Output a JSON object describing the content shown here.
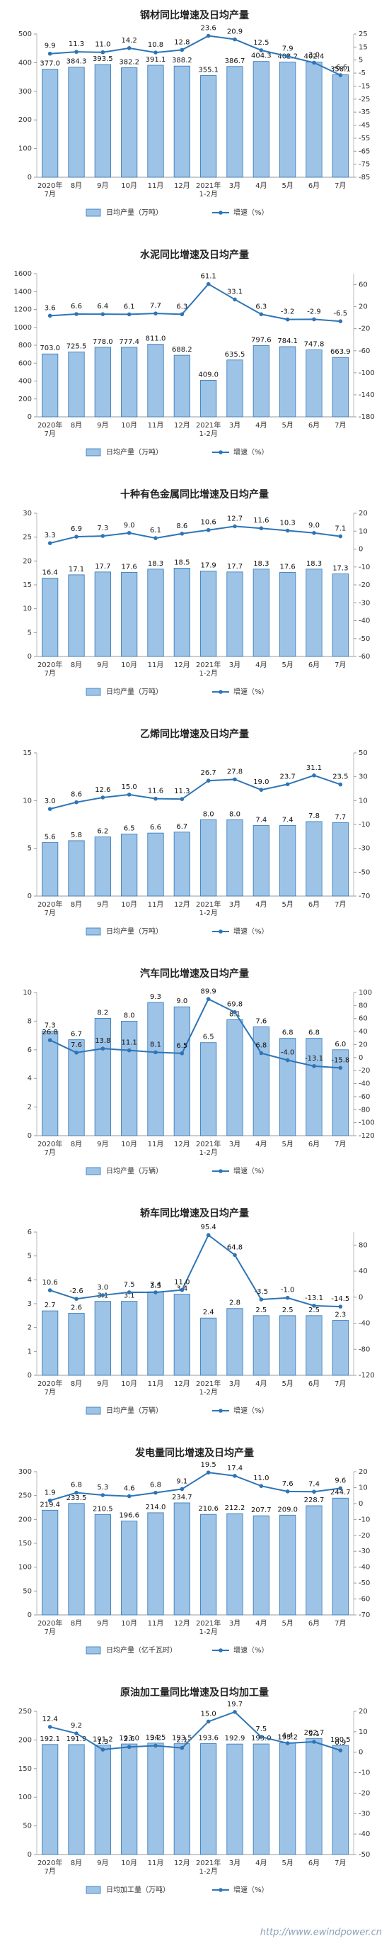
{
  "chart_data": [
    {
      "type": "bar",
      "title": "钢材同比增速及日均产量",
      "categories": [
        "2020年\n7月",
        "8月",
        "9月",
        "10月",
        "11月",
        "12月",
        "2021年\n1-2月",
        "3月",
        "4月",
        "5月",
        "6月",
        "7月"
      ],
      "series": [
        {
          "name": "日均产量（万吨）",
          "color": "#9dc3e6",
          "values": [
            377.0,
            384.3,
            393.5,
            382.2,
            391.1,
            388.2,
            355.1,
            386.7,
            404.3,
            402.2,
            402.4,
            358.1
          ],
          "value_labels": [
            "377.0",
            "384.3",
            "393.5",
            "382.2",
            "391.1",
            "388.2",
            "355.1",
            "386.7",
            "404.3",
            "402.2",
            "402.4",
            "358.1"
          ]
        },
        {
          "name": "增速（%）",
          "type": "line",
          "axis": "y2",
          "color": "#2e75b6",
          "values": [
            9.9,
            11.3,
            11.0,
            14.2,
            10.8,
            12.8,
            23.6,
            20.9,
            12.5,
            7.9,
            3.0,
            -6.6
          ],
          "value_labels": [
            "9.9",
            "11.3",
            "11.0",
            "14.2",
            "10.8",
            "12.8",
            "23.6",
            "20.9",
            "12.5",
            "7.9",
            "3.0",
            "-6.6"
          ]
        }
      ],
      "ylim": [
        0,
        500
      ],
      "yticks": [
        0,
        100,
        200,
        300,
        400,
        500
      ],
      "y2lim": [
        -85,
        25
      ],
      "y2ticks": [
        -85,
        -75,
        -65,
        -55,
        -45,
        -35,
        -25,
        -15,
        -5,
        5,
        15,
        25
      ]
    },
    {
      "type": "bar",
      "title": "水泥同比增速及日均产量",
      "categories": [
        "2020年\n7月",
        "8月",
        "9月",
        "10月",
        "11月",
        "12月",
        "2021年\n1-2月",
        "3月",
        "4月",
        "5月",
        "6月",
        "7月"
      ],
      "series": [
        {
          "name": "日均产量（万吨）",
          "color": "#9dc3e6",
          "values": [
            703.0,
            725.5,
            778.0,
            777.4,
            811.0,
            688.2,
            409.0,
            635.5,
            797.6,
            784.1,
            747.8,
            663.9
          ],
          "value_labels": [
            "703.0",
            "725.5",
            "778.0",
            "777.4",
            "811.0",
            "688.2",
            "409.0",
            "635.5",
            "797.6",
            "784.1",
            "747.8",
            "663.9"
          ]
        },
        {
          "name": "增速（%）",
          "type": "line",
          "axis": "y2",
          "color": "#2e75b6",
          "values": [
            3.6,
            6.6,
            6.4,
            6.1,
            7.7,
            6.3,
            61.1,
            33.1,
            6.3,
            -3.2,
            -2.9,
            -6.5
          ],
          "value_labels": [
            "3.6",
            "6.6",
            "6.4",
            "6.1",
            "7.7",
            "6.3",
            "61.1",
            "33.1",
            "6.3",
            "-3.2",
            "-2.9",
            "-6.5"
          ]
        }
      ],
      "ylim": [
        0,
        1600
      ],
      "yticks": [
        0,
        200,
        400,
        600,
        800,
        1000,
        1200,
        1400,
        1600
      ],
      "y2lim": [
        -180,
        80
      ],
      "y2ticks": [
        -180,
        -140,
        -100,
        -60,
        -20,
        20,
        60
      ]
    },
    {
      "type": "bar",
      "title": "十种有色金属同比增速及日均产量",
      "categories": [
        "2020年\n7月",
        "8月",
        "9月",
        "10月",
        "11月",
        "12月",
        "2021年\n1-2月",
        "3月",
        "4月",
        "5月",
        "6月",
        "7月"
      ],
      "series": [
        {
          "name": "日均产量（万吨）",
          "color": "#9dc3e6",
          "values": [
            16.4,
            17.1,
            17.7,
            17.6,
            18.3,
            18.5,
            17.9,
            17.7,
            18.3,
            17.6,
            18.3,
            17.3
          ]
        },
        {
          "name": "增速（%）",
          "type": "line",
          "axis": "y2",
          "color": "#2e75b6",
          "values": [
            3.3,
            6.9,
            7.3,
            9.0,
            6.1,
            8.6,
            10.6,
            12.7,
            11.6,
            10.3,
            9.0,
            7.1
          ],
          "value_labels": [
            "3.3",
            "6.9",
            "7.3",
            "9.0",
            "6.1",
            "8.6",
            "10.6",
            "12.7",
            "11.6",
            "10.3",
            "9.0",
            "7.1"
          ]
        }
      ],
      "ylim": [
        0,
        30
      ],
      "yticks": [
        0,
        5,
        10,
        15,
        20,
        25,
        30
      ],
      "y2lim": [
        -60,
        20
      ],
      "y2ticks": [
        -60,
        -50,
        -40,
        -30,
        -20,
        -10,
        0,
        10,
        20
      ]
    },
    {
      "type": "bar",
      "title": "乙烯同比增速及日均产量",
      "categories": [
        "2020年\n7月",
        "8月",
        "9月",
        "10月",
        "11月",
        "12月",
        "2021年\n1-2月",
        "3月",
        "4月",
        "5月",
        "6月",
        "7月"
      ],
      "series": [
        {
          "name": "日均产量（万吨）",
          "color": "#9dc3e6",
          "values": [
            5.6,
            5.8,
            6.2,
            6.5,
            6.6,
            6.7,
            8.0,
            8.0,
            7.4,
            7.4,
            7.8,
            7.7
          ],
          "value_labels": [
            "5.6",
            "5.8",
            "6.2",
            "6.5",
            "6.6",
            "6.7",
            "8.0",
            "8.0",
            "7.4",
            "7.4",
            "7.8",
            "7.7"
          ]
        },
        {
          "name": "增速（%）",
          "type": "line",
          "axis": "y2",
          "color": "#2e75b6",
          "values": [
            3.0,
            8.6,
            12.6,
            15.0,
            11.6,
            11.3,
            26.7,
            27.8,
            19.0,
            23.7,
            31.1,
            23.5
          ],
          "value_labels": [
            "3.0",
            "8.6",
            "12.6",
            "15.0",
            "11.6",
            "11.3",
            "26.7",
            "27.8",
            "19.0",
            "23.7",
            "31.1",
            "23.5"
          ]
        }
      ],
      "ylim": [
        0,
        15
      ],
      "yticks": [
        0,
        5,
        10,
        15
      ],
      "y2lim": [
        -70,
        50
      ],
      "y2ticks": [
        -70,
        -50,
        -30,
        -10,
        10,
        30,
        50
      ]
    },
    {
      "type": "bar",
      "title": "汽车同比增速及日均产量",
      "categories": [
        "2020年\n7月",
        "8月",
        "9月",
        "10月",
        "11月",
        "12月",
        "2021年\n1-2月",
        "3月",
        "4月",
        "5月",
        "6月",
        "7月"
      ],
      "series": [
        {
          "name": "日均产量（万辆）",
          "color": "#9dc3e6",
          "values": [
            7.3,
            6.7,
            8.2,
            8.0,
            9.3,
            9.0,
            6.5,
            8.1,
            7.6,
            6.8,
            6.8,
            6.0
          ],
          "value_labels": [
            "7.3",
            "6.7",
            "8.2",
            "8.0",
            "9.3",
            "9.0",
            "6.5",
            "8.1",
            "7.6",
            "6.8",
            "6.8",
            "6.0"
          ]
        },
        {
          "name": "增速（%）",
          "type": "line",
          "axis": "y2",
          "color": "#2e75b6",
          "values": [
            26.8,
            7.6,
            13.8,
            11.1,
            8.1,
            6.5,
            89.9,
            69.8,
            6.8,
            -4.0,
            -13.1,
            -15.8
          ],
          "value_labels": [
            "26.8",
            "7.6",
            "13.8",
            "11.1",
            "8.1",
            "6.5",
            "89.9",
            "69.8",
            "6.8",
            "-4.0",
            "-13.1",
            "-15.8"
          ]
        }
      ],
      "ylim": [
        0,
        10
      ],
      "yticks": [
        0,
        2,
        4,
        6,
        8,
        10
      ],
      "y2lim": [
        -120,
        100
      ],
      "y2ticks": [
        -120,
        -100,
        -80,
        -60,
        -40,
        -20,
        0,
        20,
        40,
        60,
        80,
        100
      ]
    },
    {
      "type": "bar",
      "title": "轿车同比增速及日均产量",
      "categories": [
        "2020年\n7月",
        "8月",
        "9月",
        "10月",
        "11月",
        "12月",
        "2021年\n1-2月",
        "3月",
        "4月",
        "5月",
        "6月",
        "7月"
      ],
      "series": [
        {
          "name": "日均产量（万辆）",
          "color": "#9dc3e6",
          "values": [
            2.7,
            2.6,
            3.1,
            3.1,
            3.5,
            3.4,
            2.4,
            2.8,
            2.5,
            2.5,
            2.5,
            2.3
          ]
        },
        {
          "name": "增速（%）",
          "type": "line",
          "axis": "y2",
          "color": "#2e75b6",
          "values": [
            10.6,
            -2.6,
            3.0,
            7.5,
            7.4,
            11.0,
            95.4,
            64.8,
            -3.5,
            -1.0,
            -13.1,
            -14.5
          ],
          "value_labels": [
            "10.6",
            "-2.6",
            "3.0",
            "7.5",
            "7.4",
            "11.0",
            "95.4",
            "64.8",
            "-3.5",
            "-1.0",
            "-13.1",
            "-14.5"
          ]
        }
      ],
      "ylim": [
        0,
        6
      ],
      "yticks": [
        0,
        1,
        2,
        3,
        4,
        5,
        6
      ],
      "y2lim": [
        -120,
        100
      ],
      "y2ticks": [
        -120,
        -80,
        -40,
        0,
        40,
        80
      ]
    },
    {
      "type": "bar",
      "title": "发电量同比增速及日均产量",
      "categories": [
        "2020年\n7月",
        "8月",
        "9月",
        "10月",
        "11月",
        "12月",
        "2021年\n1-2月",
        "3月",
        "4月",
        "5月",
        "6月",
        "7月"
      ],
      "series": [
        {
          "name": "日均产量（亿千瓦时）",
          "color": "#9dc3e6",
          "values": [
            219.4,
            233.5,
            210.5,
            196.6,
            214.0,
            234.7,
            210.6,
            212.2,
            207.7,
            209.0,
            228.7,
            244.7
          ],
          "value_labels": [
            "219.4",
            "233.5",
            "210.5",
            "196.6",
            "214.0",
            "234.7",
            "210.6",
            "212.2",
            "207.7",
            "209.0",
            "228.7",
            "244.7"
          ]
        },
        {
          "name": "增速（%）",
          "type": "line",
          "axis": "y2",
          "color": "#2e75b6",
          "values": [
            1.9,
            6.8,
            5.3,
            4.6,
            6.8,
            9.1,
            19.5,
            17.4,
            11.0,
            7.6,
            7.4,
            9.6
          ],
          "value_labels": [
            "1.9",
            "6.8",
            "5.3",
            "4.6",
            "6.8",
            "9.1",
            "19.5",
            "17.4",
            "11.0",
            "7.6",
            "7.4",
            "9.6"
          ]
        }
      ],
      "ylim": [
        0,
        300
      ],
      "yticks": [
        0,
        50,
        100,
        150,
        200,
        250,
        300
      ],
      "y2lim": [
        -70,
        20
      ],
      "y2ticks": [
        -70,
        -60,
        -50,
        -40,
        -30,
        -20,
        -10,
        0,
        10,
        20
      ]
    },
    {
      "type": "bar",
      "title": "原油加工量同比增速及日均加工量",
      "categories": [
        "2020年\n7月",
        "8月",
        "9月",
        "10月",
        "11月",
        "12月",
        "2021年\n1-2月",
        "3月",
        "4月",
        "5月",
        "6月",
        "7月"
      ],
      "series": [
        {
          "name": "日均加工量（万吨）",
          "color": "#9dc3e6",
          "values": [
            192.1,
            191.9,
            191.2,
            193.0,
            194.5,
            193.5,
            193.6,
            192.9,
            193.0,
            195.2,
            202.7,
            190.5
          ],
          "value_labels": [
            "192.1",
            "191.9",
            "191.2",
            "193.0",
            "194.5",
            "193.5",
            "193.6",
            "192.9",
            "193.0",
            "195.2",
            "202.7",
            "190.5"
          ]
        },
        {
          "name": "增速（%）",
          "type": "line",
          "axis": "y2",
          "color": "#2e75b6",
          "values": [
            12.4,
            9.2,
            1.3,
            2.6,
            3.2,
            2.1,
            15.0,
            19.7,
            7.5,
            4.4,
            5.1,
            0.9
          ],
          "value_labels": [
            "12.4",
            "9.2",
            "1.3",
            "2.6",
            "3.2",
            "2.1",
            "15.0",
            "19.7",
            "7.5",
            "4.4",
            "5.1",
            "0.9"
          ]
        }
      ],
      "ylim": [
        0,
        250
      ],
      "yticks": [
        0,
        50,
        100,
        150,
        200,
        250
      ],
      "y2lim": [
        -50,
        20
      ],
      "y2ticks": [
        -50,
        -40,
        -30,
        -20,
        -10,
        0,
        10,
        20
      ]
    }
  ],
  "watermark": "http://www.ewindpower.cn"
}
